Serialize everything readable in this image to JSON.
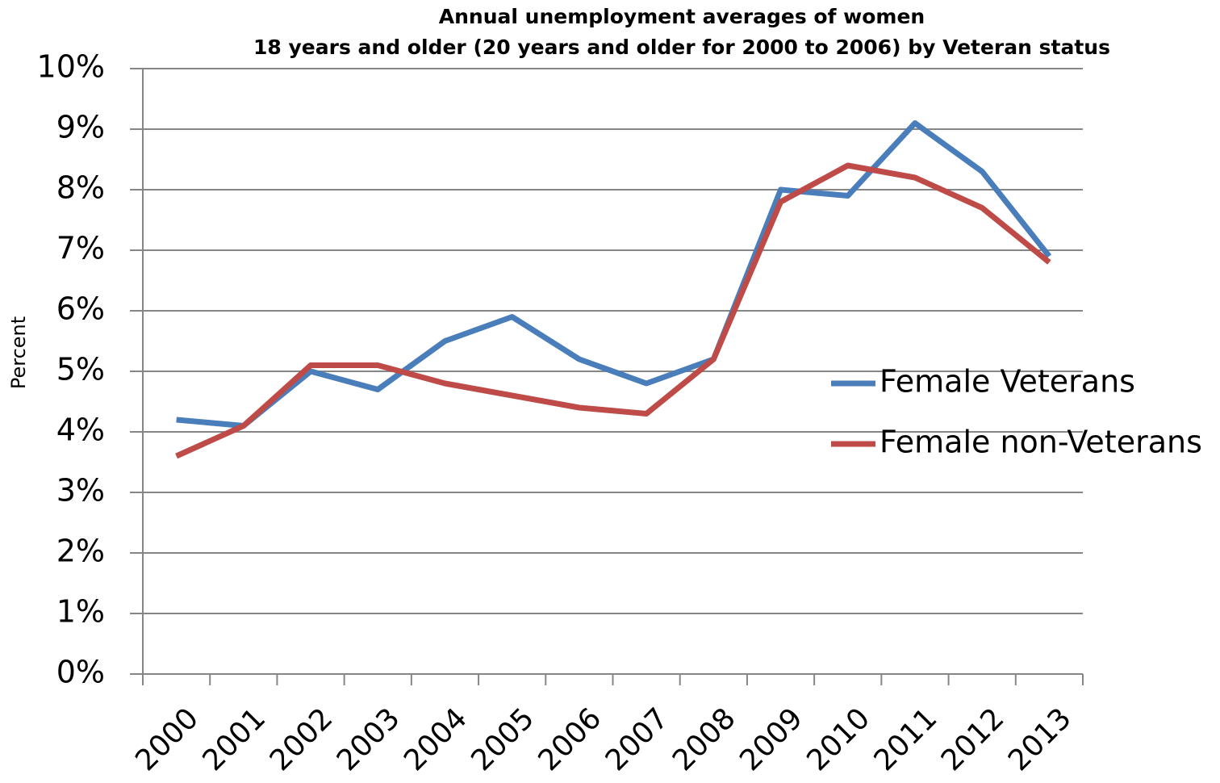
{
  "chart_data": {
    "type": "line",
    "title": "Annual unemployment averages of women",
    "subtitle": "18 years and older (20 years and older for 2000 to 2006) by Veteran status",
    "ylabel": "Percent",
    "categories": [
      "2000",
      "2001",
      "2002",
      "2003",
      "2004",
      "2005",
      "2006",
      "2007",
      "2008",
      "2009",
      "2010",
      "2011",
      "2012",
      "2013"
    ],
    "series": [
      {
        "name": "Female Veterans",
        "color": "#4a7ebb",
        "values": [
          4.2,
          4.1,
          5.0,
          4.7,
          5.5,
          5.9,
          5.2,
          4.8,
          5.2,
          8.0,
          7.9,
          9.1,
          8.3,
          6.9
        ]
      },
      {
        "name": "Female non-Veterans",
        "color": "#be4b48",
        "values": [
          3.6,
          4.1,
          5.1,
          5.1,
          4.8,
          4.6,
          4.4,
          4.3,
          5.2,
          7.8,
          8.4,
          8.2,
          7.7,
          6.8
        ]
      }
    ],
    "ylim": [
      0,
      10
    ],
    "yticks": [
      {
        "value": 0,
        "label": "0%"
      },
      {
        "value": 1,
        "label": "1%"
      },
      {
        "value": 2,
        "label": "2%"
      },
      {
        "value": 3,
        "label": "3%"
      },
      {
        "value": 4,
        "label": "4%"
      },
      {
        "value": 5,
        "label": "5%"
      },
      {
        "value": 6,
        "label": "6%"
      },
      {
        "value": 7,
        "label": "7%"
      },
      {
        "value": 8,
        "label": "8%"
      },
      {
        "value": 9,
        "label": "9%"
      },
      {
        "value": 10,
        "label": "10%"
      }
    ],
    "grid": true,
    "legend": "right"
  }
}
